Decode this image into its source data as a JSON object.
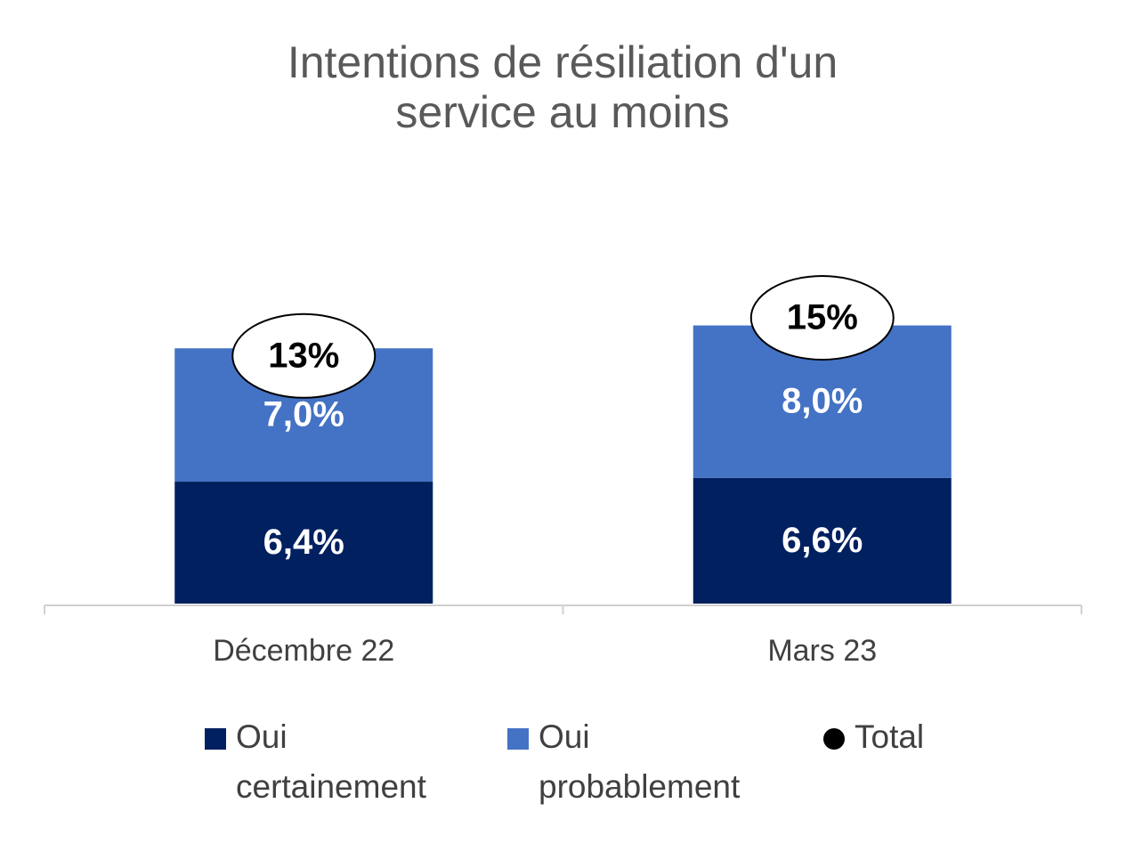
{
  "chart_data": {
    "type": "bar",
    "stacked": true,
    "title": "Intentions de résiliation d'un service au moins",
    "categories": [
      "Décembre 22",
      "Mars 23"
    ],
    "series": [
      {
        "name": "Oui certainement",
        "color": "#002060",
        "values": [
          6.4,
          6.6
        ],
        "value_labels": [
          "6,4%",
          "6,6%"
        ]
      },
      {
        "name": "Oui probablement",
        "color": "#4472c4",
        "values": [
          7.0,
          8.0
        ],
        "value_labels": [
          "7,0%",
          "8,0%"
        ]
      },
      {
        "name": "Total",
        "color": "#000000",
        "values": [
          13,
          15
        ],
        "value_labels": [
          "13%",
          "15%"
        ]
      }
    ],
    "ylim": [
      0,
      20
    ]
  }
}
